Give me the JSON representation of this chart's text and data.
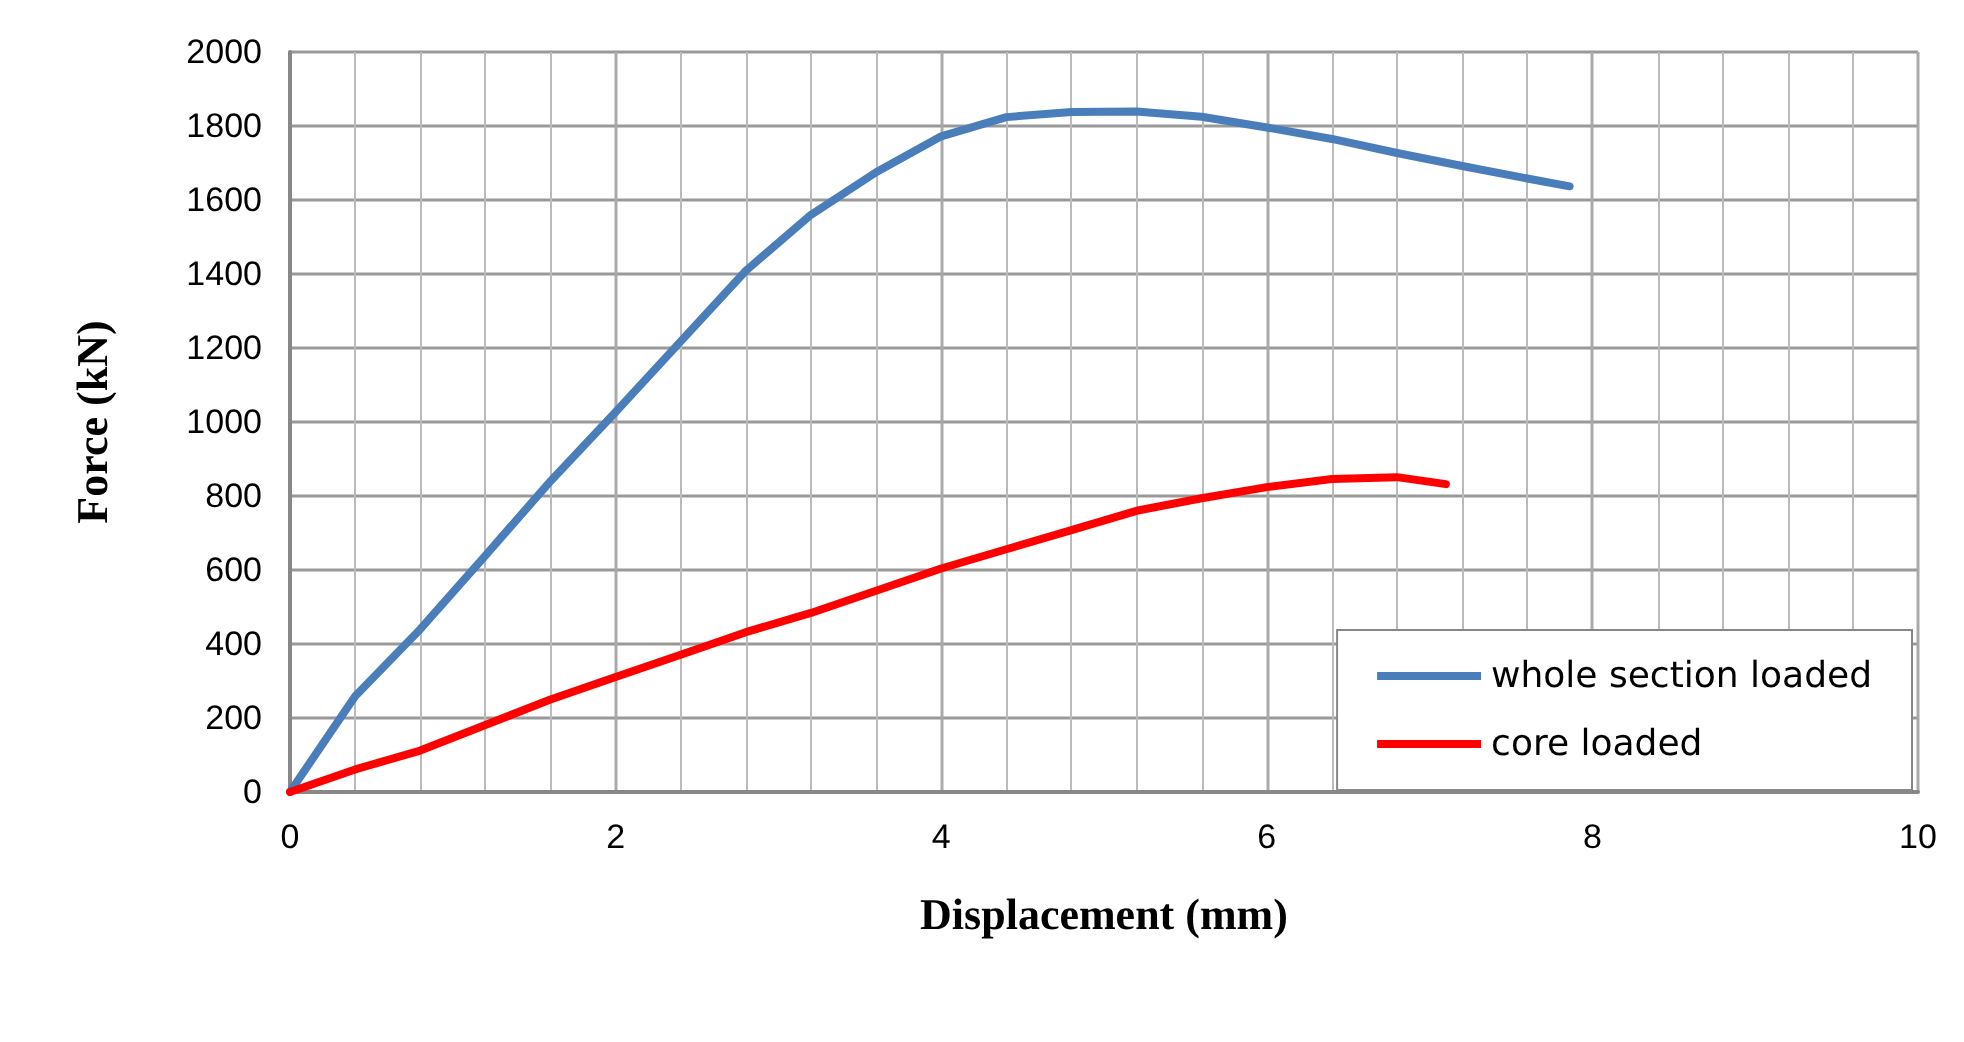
{
  "chart_data": {
    "type": "line",
    "xlabel": "Displacement (mm)",
    "ylabel": "Force (kN)",
    "xlim": [
      0,
      10
    ],
    "xticks": [
      0,
      2,
      4,
      6,
      8,
      10
    ],
    "ylim": [
      0,
      2000
    ],
    "yticks": [
      0,
      200,
      400,
      600,
      800,
      1000,
      1200,
      1400,
      1600,
      1800,
      2000
    ],
    "grid": true,
    "legend": "bottom right",
    "marker": "none",
    "line_style": "solid",
    "series": [
      {
        "name": "whole section loaded",
        "color": "#4a7ebb",
        "x": [
          0,
          0.4,
          0.8,
          1.2,
          1.6,
          2.0,
          2.4,
          2.8,
          3.2,
          3.6,
          4.0,
          4.4,
          4.8,
          5.2,
          5.6,
          6.0,
          6.4,
          6.8,
          7.2,
          7.6,
          7.86
        ],
        "values": [
          0,
          259,
          440,
          639,
          840,
          1027,
          1218,
          1409,
          1560,
          1675,
          1772,
          1824,
          1838,
          1839,
          1825,
          1796,
          1765,
          1727,
          1692,
          1658,
          1637
        ]
      },
      {
        "name": "core loaded",
        "color": "#ff0000",
        "x": [
          0,
          0.4,
          0.8,
          1.2,
          1.6,
          2.0,
          2.4,
          2.8,
          3.2,
          3.6,
          4.0,
          4.4,
          4.8,
          5.2,
          5.6,
          6.0,
          6.4,
          6.8,
          7.1
        ],
        "values": [
          0,
          61,
          112,
          181,
          250,
          311,
          371,
          432,
          484,
          544,
          604,
          656,
          708,
          760,
          794,
          824,
          846,
          851,
          832
        ]
      }
    ]
  }
}
